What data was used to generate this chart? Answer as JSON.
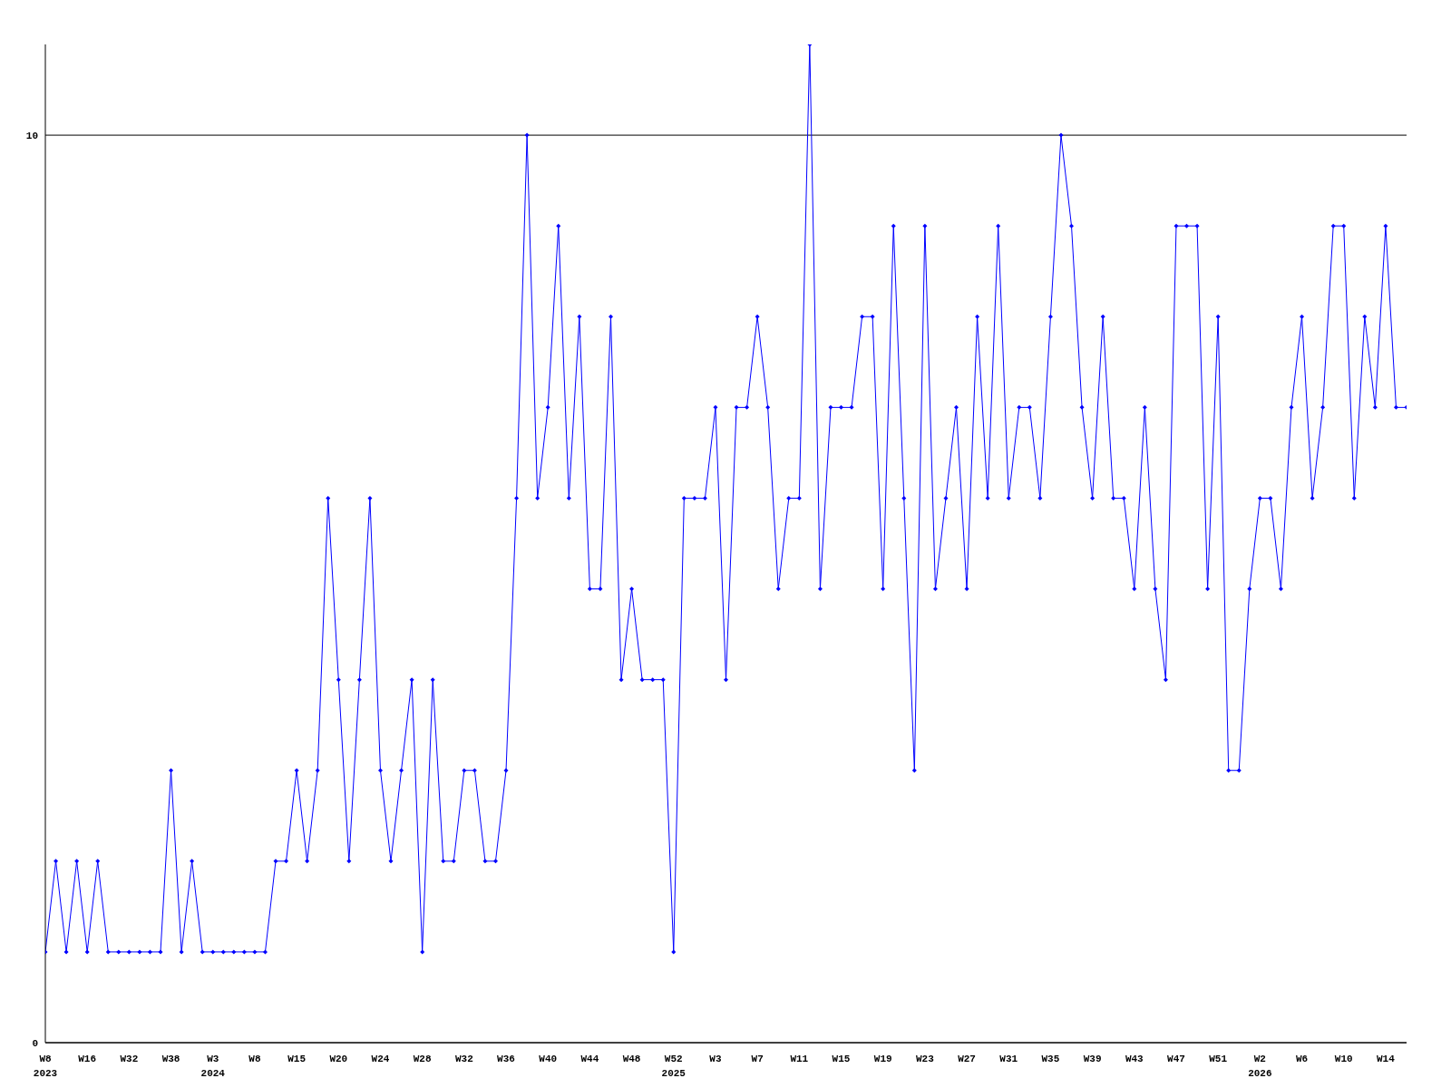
{
  "chart_data": {
    "type": "line",
    "categories": [
      "W8\n2023",
      null,
      null,
      null,
      "W16",
      null,
      null,
      null,
      "W32",
      null,
      null,
      null,
      "W38",
      null,
      null,
      null,
      "W3\n2024",
      null,
      null,
      null,
      "W8",
      null,
      null,
      null,
      "W15",
      null,
      null,
      null,
      "W20",
      null,
      null,
      null,
      "W24",
      null,
      null,
      null,
      "W28",
      null,
      null,
      null,
      "W32",
      null,
      null,
      null,
      "W36",
      null,
      null,
      null,
      "W40",
      null,
      null,
      null,
      "W44",
      null,
      null,
      null,
      "W48",
      null,
      null,
      null,
      "W52\n2025",
      null,
      null,
      null,
      "W3",
      null,
      null,
      null,
      "W7",
      null,
      null,
      null,
      "W11",
      null,
      null,
      null,
      "W15",
      null,
      null,
      null,
      "W19",
      null,
      null,
      null,
      "W23",
      null,
      null,
      null,
      "W27",
      null,
      null,
      null,
      "W31",
      null,
      null,
      null,
      "W35",
      null,
      null,
      null,
      "W39",
      null,
      null,
      null,
      "W43",
      null,
      null,
      null,
      "W47",
      null,
      null,
      null,
      "W51",
      null,
      null,
      null,
      "W2\n2026",
      null,
      null,
      null,
      "W6",
      null,
      null,
      null,
      "W10",
      null,
      null,
      null,
      "W14",
      null,
      null
    ],
    "series": [
      {
        "color": "#0000ff",
        "values": [
          1,
          2,
          1,
          2,
          1,
          2,
          1,
          1,
          1,
          1,
          1,
          1,
          3,
          1,
          2,
          1,
          1,
          1,
          1,
          1,
          1,
          1,
          2,
          2,
          3,
          2,
          3,
          6,
          4,
          2,
          4,
          6,
          3,
          2,
          3,
          4,
          1,
          4,
          2,
          2,
          3,
          3,
          2,
          2,
          3,
          6,
          10,
          6,
          7,
          9,
          6,
          8,
          5,
          5,
          8,
          4,
          5,
          4,
          4,
          4,
          1,
          6,
          6,
          6,
          7,
          4,
          7,
          7,
          8,
          7,
          5,
          6,
          6,
          11,
          5,
          7,
          7,
          7,
          8,
          8,
          5,
          9,
          6,
          3,
          9,
          5,
          6,
          7,
          5,
          8,
          6,
          9,
          6,
          7,
          7,
          6,
          8,
          10,
          9,
          7,
          6,
          8,
          6,
          6,
          5,
          7,
          5,
          4,
          9,
          9,
          9,
          5,
          8,
          3,
          3,
          5,
          6,
          6,
          5,
          7,
          8,
          6,
          7,
          9,
          9,
          6,
          8,
          7,
          9,
          7,
          7
        ]
      }
    ],
    "ylim": [
      0,
      11
    ],
    "yticks": [
      0,
      10
    ],
    "grid": "y",
    "marker": "diamond"
  }
}
